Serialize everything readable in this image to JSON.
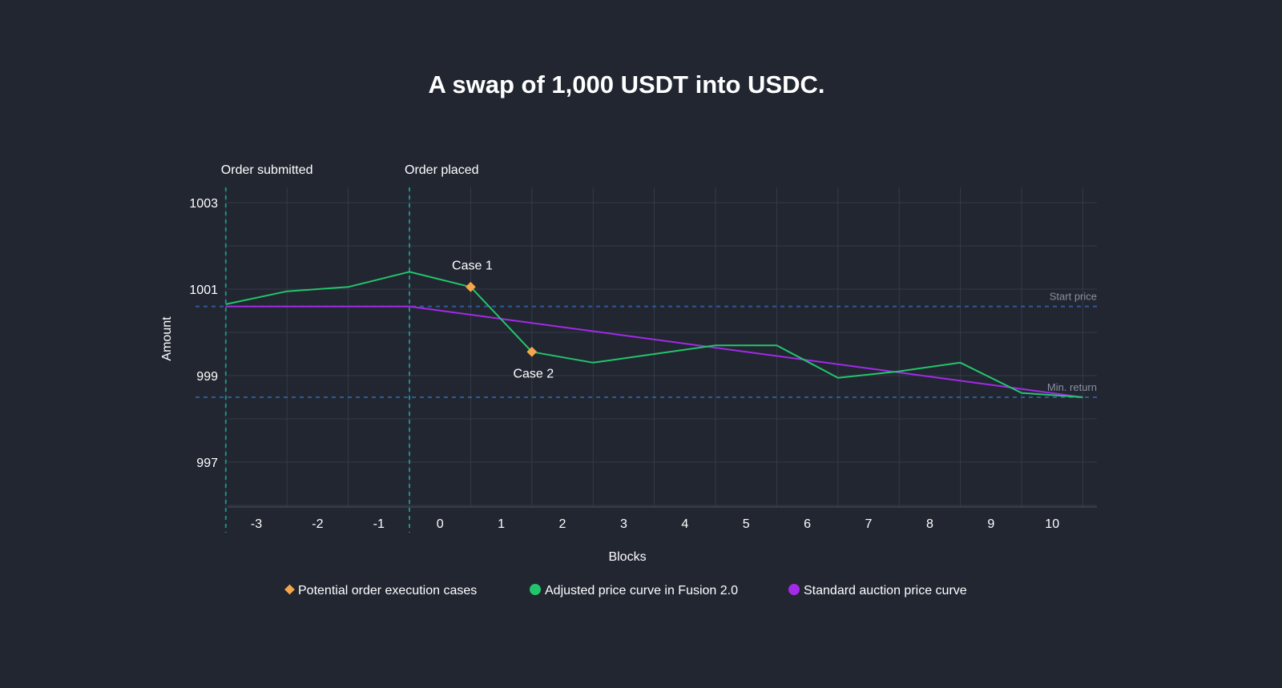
{
  "chart_data": {
    "type": "line",
    "title": "A swap of 1,000 USDT into USDC.",
    "xlabel": "Blocks",
    "ylabel": "Amount",
    "x_ticks": [
      -3,
      -2,
      -1,
      0,
      1,
      2,
      3,
      4,
      5,
      6,
      7,
      8,
      9,
      10
    ],
    "y_ticks": [
      997,
      999,
      1001,
      1003
    ],
    "ylim": [
      996,
      1003.3
    ],
    "grid": true,
    "legend_position": "bottom",
    "series": [
      {
        "name": "Adjusted price curve in Fusion 2.0",
        "color": "#23c56a",
        "x": [
          -3.5,
          -2.5,
          -1.5,
          -0.5,
          0.5,
          1.5,
          2.5,
          3.5,
          4.5,
          5.5,
          6.5,
          7.5,
          8.5,
          9.5,
          10.5
        ],
        "values": [
          1000.65,
          1000.95,
          1001.05,
          1001.4,
          1001.05,
          999.55,
          999.3,
          999.5,
          999.7,
          999.7,
          998.95,
          999.1,
          999.3,
          998.6,
          998.5
        ]
      },
      {
        "name": "Standard auction price curve",
        "color": "#a32ae8",
        "x": [
          -3.5,
          -0.5,
          10.5
        ],
        "values": [
          1000.6,
          1000.6,
          998.5
        ]
      }
    ],
    "markers": {
      "name": "Potential order execution cases",
      "color": "#f5a64a",
      "points": [
        {
          "label": "Case 1",
          "x": 0.5,
          "y": 1001.05
        },
        {
          "label": "Case 2",
          "x": 1.5,
          "y": 999.55
        }
      ]
    },
    "reference_lines": [
      {
        "label": "Start price",
        "y": 1000.6
      },
      {
        "label": "Min. return",
        "y": 998.5
      }
    ],
    "event_lines": [
      {
        "label": "Order submitted",
        "x": -3.5
      },
      {
        "label": "Order placed",
        "x": -0.5
      }
    ]
  }
}
